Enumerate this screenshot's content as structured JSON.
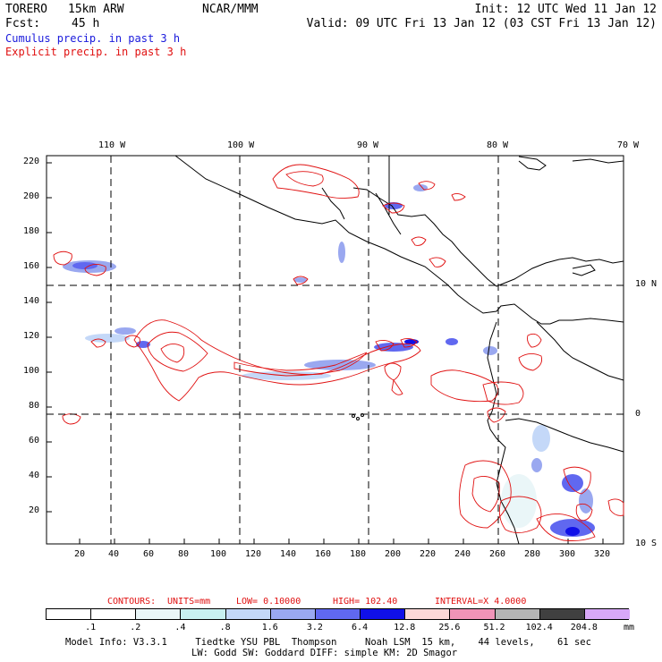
{
  "header": {
    "model": "TORERO",
    "resolution": "15km ARW",
    "org": "NCAR/MMM",
    "init": "Init: 12 UTC Wed 11 Jan 12",
    "fcst_label": "Fcst:",
    "fcst_value": "45 h",
    "valid": "Valid: 09 UTC Fri 13 Jan 12 (03 CST Fri 13 Jan 12)",
    "cumulus": "Cumulus precip. in past 3 h",
    "explicit": "Explicit precip. in past 3 h"
  },
  "map": {
    "lon_labels": [
      "110 W",
      "100 W",
      "90 W",
      "80 W",
      "70 W"
    ],
    "lat_labels": [
      "10 N",
      "0",
      "10 S"
    ],
    "y_ticks": [
      "220",
      "200",
      "180",
      "160",
      "140",
      "120",
      "100",
      "80",
      "60",
      "40",
      "20"
    ],
    "x_ticks": [
      "20",
      "40",
      "60",
      "80",
      "100",
      "120",
      "140",
      "160",
      "180",
      "200",
      "220",
      "240",
      "260",
      "280",
      "300",
      "320"
    ]
  },
  "contours": {
    "label": "CONTOURS:",
    "units": "UNITS=mm",
    "low": "LOW= 0.10000",
    "high": "HIGH= 102.40",
    "interval": "INTERVAL=X 4.0000"
  },
  "legend": {
    "unit": "mm",
    "labels": [
      ".1",
      ".2",
      ".4",
      ".8",
      "1.6",
      "3.2",
      "6.4",
      "12.8",
      "25.6",
      "51.2",
      "102.4",
      "204.8"
    ],
    "colors": [
      "#ffffff",
      "#ffffff",
      "#eaf6f8",
      "#c8f0f0",
      "#c4d8f8",
      "#9aa8f0",
      "#6068f0",
      "#1010e8",
      "#fcd8d8",
      "#f094b8",
      "#b4b4b4",
      "#404040",
      "#d8a8f8"
    ]
  },
  "footer": {
    "line1": "Model Info: V3.3.1     Tiedtke YSU PBL  Thompson     Noah LSM  15 km,    44 levels,    61 sec",
    "line2": "LW: Godd SW: Goddard DIFF: simple KM: 2D Smagor"
  }
}
